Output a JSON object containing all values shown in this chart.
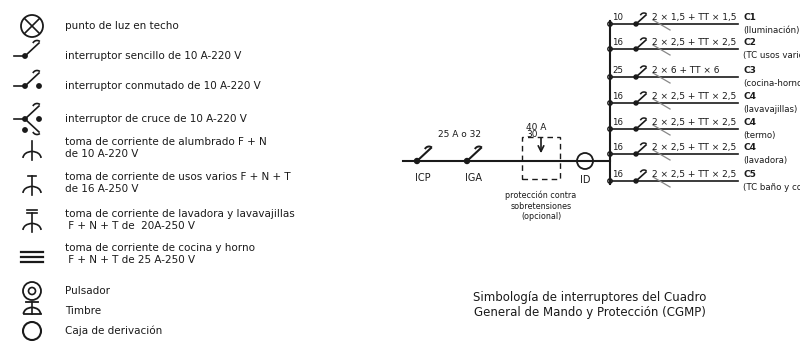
{
  "background_color": "#ffffff",
  "circuit_labels": [
    {
      "amp": "10",
      "wire": "2 × 1,5 + TT × 1,5",
      "code": "C1",
      "desc": "(Iluminación)"
    },
    {
      "amp": "16",
      "wire": "2 × 2,5 + TT × 2,5",
      "code": "C2",
      "desc": "(TC usos varios)"
    },
    {
      "amp": "25",
      "wire": "2 × 6 + TT × 6",
      "code": "C3",
      "desc": "(cocina-horno)"
    },
    {
      "amp": "16",
      "wire": "2 × 2,5 + TT × 2,5",
      "code": "C4",
      "desc": "(lavavajillas)"
    },
    {
      "amp": "16",
      "wire": "2 × 2,5 + TT × 2,5",
      "code": "C4",
      "desc": "(termo)"
    },
    {
      "amp": "16",
      "wire": "2 × 2,5 + TT × 2,5",
      "code": "C4",
      "desc": "(lavadora)"
    },
    {
      "amp": "16",
      "wire": "2 × 2,5 + TT × 2,5",
      "code": "C5",
      "desc": "(TC baño y cocina)"
    }
  ],
  "icp_label": "ICP",
  "iga_label": "IGA",
  "id_label": "ID",
  "prot_label": "protección contra\nsobretensiones\n(opcional)",
  "iga_amp": "25 A o 32",
  "main_amp_top": "40 A",
  "main_amp_bot": "30",
  "caption": "Simbología de interruptores del Cuadro\nGeneral de Mando y Protección (CGMP)",
  "text_color": "#1a1a1a",
  "line_color": "#1a1a1a",
  "gray_color": "#888888"
}
